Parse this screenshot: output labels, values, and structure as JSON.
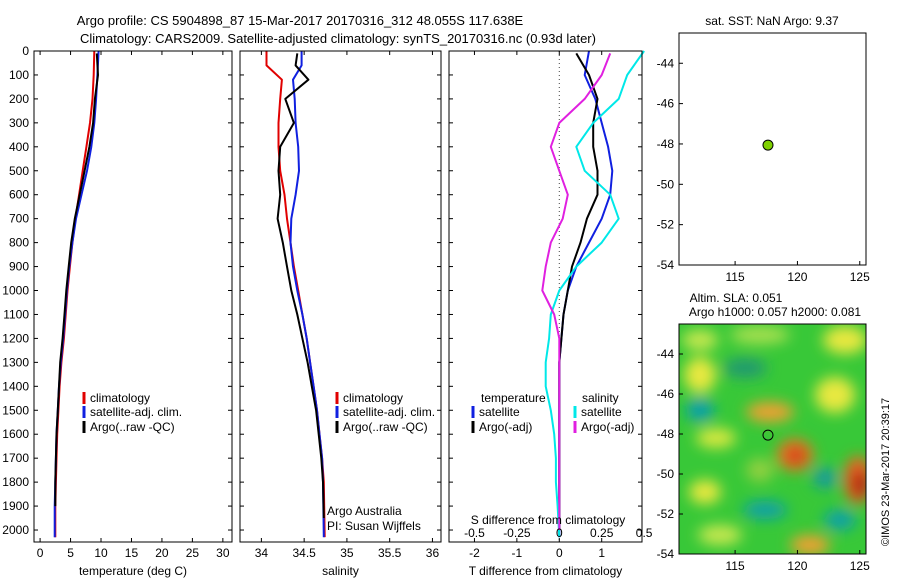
{
  "header": {
    "line1": "Argo profile: CS 5904898_87 15-Mar-2017 20170316_312 48.055S 117.638E",
    "line2": "Climatology: CARS2009. Satellite-adjusted climatology: synTS_20170316.nc (0.93d later)"
  },
  "colors": {
    "red": "#e00000",
    "blue": "#1020e0",
    "black": "#000000",
    "cyan": "#00e8e8",
    "magenta": "#e020e0",
    "green_dot": "#7fd000"
  },
  "chart_data": [
    {
      "id": "temperature_panel",
      "type": "line",
      "xlabel": "temperature (deg C)",
      "ylabel": "",
      "xlim": [
        -1,
        31.5
      ],
      "ylim": [
        2050,
        0
      ],
      "xticks": [
        0,
        5,
        10,
        15,
        20,
        25,
        30
      ],
      "yticks": [
        0,
        100,
        200,
        300,
        400,
        500,
        600,
        700,
        800,
        900,
        1000,
        1100,
        1200,
        1300,
        1400,
        1500,
        1600,
        1700,
        1800,
        1900,
        2000
      ],
      "legend": [
        "climatology",
        "satellite-adj. clim.",
        "Argo(..raw -QC)"
      ],
      "series": [
        {
          "name": "climatology",
          "color": "red",
          "x": [
            8.9,
            8.8,
            8.6,
            8.2,
            7.6,
            7.0,
            6.4,
            5.8,
            5.3,
            4.9,
            4.5,
            4.2,
            3.9,
            3.5,
            3.2,
            3.0,
            2.8,
            2.7,
            2.6,
            2.5,
            2.5
          ],
          "y": [
            0,
            100,
            200,
            300,
            400,
            500,
            600,
            700,
            800,
            900,
            1000,
            1100,
            1200,
            1300,
            1400,
            1500,
            1600,
            1700,
            1800,
            1900,
            2030
          ]
        },
        {
          "name": "satellite-adj. clim.",
          "color": "blue",
          "x": [
            9.6,
            9.4,
            9.2,
            8.9,
            8.4,
            7.7,
            6.8,
            5.9,
            5.3,
            4.8,
            4.4,
            4.1,
            3.8,
            3.4,
            3.1,
            2.9,
            2.7,
            2.6,
            2.5,
            2.4,
            2.4
          ],
          "y": [
            0,
            100,
            200,
            300,
            400,
            500,
            600,
            700,
            800,
            900,
            1000,
            1100,
            1200,
            1300,
            1400,
            1500,
            1600,
            1700,
            1800,
            1900,
            2030
          ]
        },
        {
          "name": "Argo(..raw -QC)",
          "color": "black",
          "x": [
            9.3,
            9.5,
            9.0,
            8.7,
            8.1,
            7.3,
            6.5,
            5.7,
            5.1,
            4.7,
            4.3,
            4.0,
            3.7,
            3.3,
            3.1,
            2.9,
            2.7,
            2.6,
            2.5,
            2.5
          ],
          "y": [
            10,
            100,
            200,
            300,
            400,
            500,
            600,
            700,
            800,
            900,
            1000,
            1100,
            1200,
            1300,
            1400,
            1500,
            1600,
            1700,
            1800,
            1900
          ]
        }
      ]
    },
    {
      "id": "salinity_panel",
      "type": "line",
      "xlabel": "salinity",
      "xlim": [
        33.75,
        36.1
      ],
      "ylim": [
        2050,
        0
      ],
      "xticks": [
        34,
        34.5,
        35,
        35.5,
        36
      ],
      "legend": [
        "climatology",
        "satellite-adj. clim.",
        "Argo(..raw -QC)"
      ],
      "annotation": [
        "Argo Australia",
        "PI: Susan Wijffels"
      ],
      "series": [
        {
          "name": "climatology",
          "color": "red",
          "x": [
            34.06,
            34.06,
            34.24,
            34.22,
            34.2,
            34.2,
            34.22,
            34.27,
            34.3,
            34.34,
            34.38,
            34.43,
            34.48,
            34.53,
            34.57,
            34.61,
            34.65,
            34.68,
            34.71,
            34.73,
            34.74
          ],
          "y": [
            0,
            60,
            120,
            200,
            300,
            400,
            500,
            600,
            700,
            800,
            900,
            1000,
            1100,
            1200,
            1300,
            1400,
            1500,
            1600,
            1700,
            1800,
            2030
          ]
        },
        {
          "name": "satellite-adj. clim.",
          "color": "blue",
          "x": [
            34.47,
            34.47,
            34.37,
            34.39,
            34.4,
            34.43,
            34.44,
            34.4,
            34.35,
            34.34,
            34.37,
            34.42,
            34.48,
            34.53,
            34.57,
            34.61,
            34.65,
            34.68,
            34.71,
            34.72,
            34.73
          ],
          "y": [
            0,
            60,
            120,
            200,
            300,
            400,
            500,
            600,
            700,
            800,
            900,
            1000,
            1100,
            1200,
            1300,
            1400,
            1500,
            1600,
            1700,
            1800,
            2030
          ]
        },
        {
          "name": "Argo(..raw -QC)",
          "color": "black",
          "x": [
            34.42,
            34.4,
            34.55,
            34.28,
            34.38,
            34.22,
            34.2,
            34.22,
            34.19,
            34.25,
            34.3,
            34.35,
            34.42,
            34.48,
            34.54,
            34.59,
            34.64,
            34.67,
            34.7,
            34.72,
            34.73
          ],
          "y": [
            10,
            60,
            120,
            200,
            300,
            400,
            500,
            600,
            700,
            800,
            900,
            1000,
            1100,
            1200,
            1300,
            1400,
            1500,
            1600,
            1700,
            1800,
            1950
          ]
        }
      ]
    },
    {
      "id": "difference_panel",
      "type": "line",
      "xlabel": "T difference from climatology",
      "xlabel_top": "S difference from climatology",
      "xlim": [
        -2.6,
        1.95
      ],
      "ylim": [
        2050,
        0
      ],
      "xticks": [
        -2,
        -1,
        0,
        1
      ],
      "xticks_s": [
        "-0.5",
        "-0.25",
        "0",
        "0.25",
        "0.5"
      ],
      "legend_t_title": "temperature",
      "legend_s_title": "salinity",
      "legend": [
        "satellite",
        "Argo(-adj)",
        "satellite",
        "Argo(-adj)"
      ],
      "series": [
        {
          "name": "temperature satellite",
          "color": "blue",
          "x": [
            0.7,
            0.6,
            0.85,
            1.0,
            1.15,
            1.25,
            1.2,
            1.0,
            0.7,
            0.4,
            0.2,
            0.1,
            0.05,
            0.0,
            0.0,
            0.0,
            0.0,
            0.0,
            0.0,
            0.0,
            0.0
          ],
          "y": [
            0,
            100,
            200,
            300,
            400,
            500,
            600,
            700,
            800,
            900,
            1000,
            1100,
            1200,
            1300,
            1400,
            1500,
            1600,
            1700,
            1800,
            1900,
            2030
          ]
        },
        {
          "name": "temperature Argo(-adj)",
          "color": "black",
          "x": [
            0.4,
            0.7,
            0.9,
            0.8,
            0.8,
            0.9,
            0.9,
            0.65,
            0.5,
            0.3,
            0.2,
            0.1,
            0.05,
            0.0,
            0.0,
            0.0,
            0.0,
            0.0,
            0.0,
            0.0,
            0.0
          ],
          "y": [
            10,
            100,
            200,
            300,
            400,
            500,
            600,
            700,
            800,
            900,
            1000,
            1100,
            1200,
            1300,
            1400,
            1500,
            1600,
            1700,
            1800,
            1900,
            2000
          ]
        },
        {
          "name": "salinity satellite",
          "color": "cyan",
          "x": [
            0.5,
            0.4,
            0.35,
            0.2,
            0.1,
            0.15,
            0.3,
            0.35,
            0.25,
            0.1,
            0.0,
            -0.05,
            -0.06,
            -0.08,
            -0.08,
            -0.05,
            -0.03,
            -0.02,
            -0.02,
            -0.01,
            0.0
          ],
          "y": [
            0,
            100,
            200,
            300,
            400,
            500,
            600,
            700,
            800,
            900,
            1000,
            1100,
            1200,
            1300,
            1400,
            1500,
            1600,
            1700,
            1800,
            1900,
            2030
          ]
        },
        {
          "name": "salinity Argo(-adj)",
          "color": "magenta",
          "x": [
            0.3,
            0.25,
            0.15,
            0.0,
            -0.05,
            0.0,
            0.05,
            0.02,
            -0.05,
            -0.08,
            -0.1,
            -0.03,
            0.0,
            0.0,
            0.0,
            0.0,
            0.0,
            0.0,
            0.0,
            0.0,
            0.0
          ],
          "y": [
            10,
            100,
            200,
            300,
            400,
            500,
            600,
            700,
            800,
            900,
            1000,
            1100,
            1200,
            1300,
            1400,
            1500,
            1600,
            1700,
            1800,
            1900,
            2000
          ]
        }
      ]
    },
    {
      "id": "sst_map",
      "type": "scatter",
      "title": "sat. SST: NaN Argo: 9.37",
      "xlim": [
        110.5,
        125.5
      ],
      "ylim": [
        -54,
        -42.5
      ],
      "xticks": [
        115,
        120,
        125
      ],
      "yticks": [
        -44,
        -46,
        -48,
        -50,
        -52,
        -54
      ],
      "points": [
        {
          "x": 117.638,
          "y": -48.055
        }
      ]
    },
    {
      "id": "sla_map",
      "type": "heatmap",
      "title_line1": "Altim. SLA: 0.051",
      "title_line2": "Argo h1000: 0.057 h2000: 0.081",
      "xlim": [
        110.5,
        125.5
      ],
      "ylim": [
        -54,
        -42.5
      ],
      "xticks": [
        115,
        120,
        125
      ],
      "yticks": [
        -44,
        -46,
        -48,
        -50,
        -52,
        -54
      ],
      "points": [
        {
          "x": 117.638,
          "y": -48.055
        }
      ],
      "credit": "©IMOS 23-Mar-2017 20:39:17"
    }
  ]
}
